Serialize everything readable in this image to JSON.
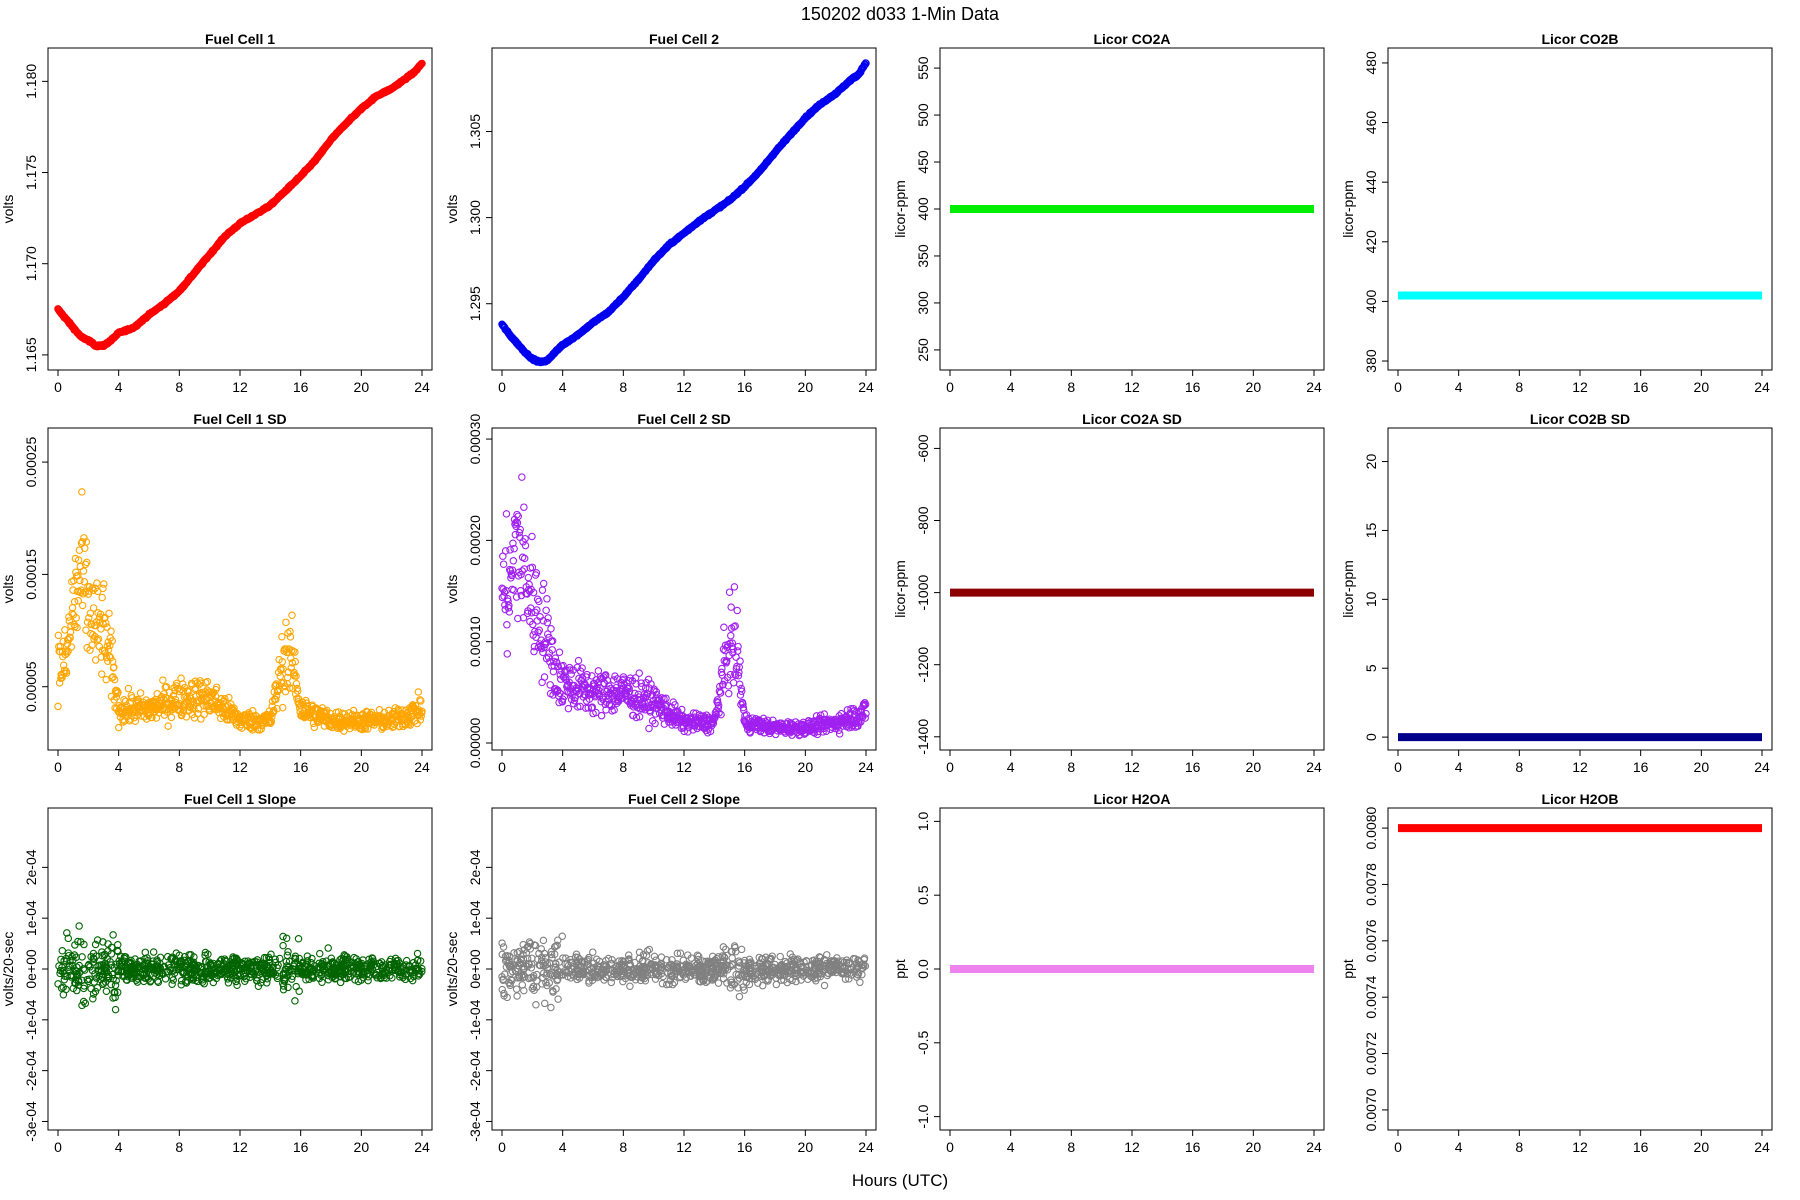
{
  "figure": {
    "title": "150202   d033   1-Min Data",
    "xlabel": "Hours (UTC)"
  },
  "chart_data": [
    {
      "type": "scatter",
      "title": "Fuel Cell 1",
      "ylabel": "volts",
      "color": "#ff0000",
      "xlim": [
        0,
        24
      ],
      "ylim": [
        1.1645,
        1.1815
      ],
      "yticks": [
        1.165,
        1.17,
        1.175,
        1.18
      ],
      "ytick_labels": [
        "1.165",
        "1.170",
        "1.175",
        "1.180"
      ],
      "x": [
        0,
        0.5,
        1,
        1.5,
        2,
        2.5,
        3,
        3.5,
        4,
        5,
        6,
        7,
        8,
        9,
        10,
        11,
        12,
        13,
        14,
        15,
        16,
        17,
        18,
        19,
        20,
        21,
        22,
        23,
        23.5,
        24
      ],
      "y": [
        1.1675,
        1.167,
        1.1665,
        1.166,
        1.1658,
        1.1655,
        1.1655,
        1.1658,
        1.1662,
        1.1665,
        1.1672,
        1.1678,
        1.1685,
        1.1695,
        1.1705,
        1.1715,
        1.1722,
        1.1727,
        1.1732,
        1.174,
        1.1748,
        1.1757,
        1.1768,
        1.1777,
        1.1785,
        1.1792,
        1.1796,
        1.1802,
        1.1805,
        1.181
      ]
    },
    {
      "type": "scatter",
      "title": "Fuel Cell 2",
      "ylabel": "volts",
      "color": "#0000ee",
      "xlim": [
        0,
        24
      ],
      "ylim": [
        1.2915,
        1.3095
      ],
      "yticks": [
        1.295,
        1.3,
        1.305
      ],
      "ytick_labels": [
        "1.295",
        "1.300",
        "1.305"
      ],
      "x": [
        0,
        0.5,
        1,
        1.5,
        2,
        2.5,
        3,
        3.5,
        4,
        5,
        6,
        7,
        8,
        9,
        10,
        11,
        12,
        13,
        14,
        15,
        16,
        17,
        18,
        19,
        20,
        21,
        22,
        23,
        23.5,
        24
      ],
      "y": [
        1.2938,
        1.2932,
        1.2927,
        1.2922,
        1.2918,
        1.2916,
        1.2917,
        1.2922,
        1.2926,
        1.2932,
        1.2939,
        1.2945,
        1.2954,
        1.2964,
        1.2975,
        1.2984,
        1.2991,
        1.2998,
        1.3004,
        1.301,
        1.3018,
        1.3027,
        1.3038,
        1.3048,
        1.3058,
        1.3066,
        1.3072,
        1.308,
        1.3083,
        1.309
      ]
    },
    {
      "type": "scatter",
      "title": "Licor CO2A",
      "ylabel": "licor-ppm",
      "color": "#00ee00",
      "xlim": [
        0,
        24
      ],
      "ylim": [
        235,
        565
      ],
      "yticks": [
        250,
        300,
        350,
        400,
        450,
        500,
        550
      ],
      "ytick_labels": [
        "250",
        "300",
        "350",
        "400",
        "450",
        "500",
        "550"
      ],
      "x": [
        0,
        24
      ],
      "y": [
        400,
        400
      ],
      "mode": "flat"
    },
    {
      "type": "scatter",
      "title": "Licor CO2B",
      "ylabel": "licor-ppm",
      "color": "#00ffff",
      "xlim": [
        0,
        24
      ],
      "ylim": [
        379,
        483
      ],
      "yticks": [
        380,
        400,
        420,
        440,
        460,
        480
      ],
      "ytick_labels": [
        "380",
        "400",
        "420",
        "440",
        "460",
        "480"
      ],
      "x": [
        0,
        24
      ],
      "y": [
        402,
        402
      ],
      "mode": "flat"
    },
    {
      "type": "scatter",
      "title": "Fuel Cell 1 SD",
      "ylabel": "volts",
      "color": "#ffa500",
      "xlim": [
        0,
        24
      ],
      "ylim": [
        -1e-06,
        0.000275
      ],
      "yticks": [
        5e-05,
        0.00015,
        0.00025
      ],
      "ytick_labels": [
        "0.00005",
        "0.00015",
        "0.00025"
      ],
      "x": [
        0.5,
        1,
        1.5,
        2,
        2.5,
        3,
        3.5,
        4,
        6,
        8,
        10,
        12,
        14,
        15,
        15.5,
        16,
        18,
        20,
        22,
        24
      ],
      "y": [
        7e-05,
        0.00012,
        0.00015,
        0.00012,
        0.0001,
        0.0001,
        7e-05,
        3e-05,
        3e-05,
        4e-05,
        4e-05,
        2e-05,
        2e-05,
        8e-05,
        7e-05,
        3e-05,
        2e-05,
        2e-05,
        2e-05,
        3e-05
      ]
    },
    {
      "type": "scatter",
      "title": "Fuel Cell 2 SD",
      "ylabel": "volts",
      "color": "#a020f0",
      "xlim": [
        0,
        24
      ],
      "ylim": [
        -1e-06,
        0.000305
      ],
      "yticks": [
        0,
        0.0001,
        0.0002,
        0.0003
      ],
      "ytick_labels": [
        "0.00000",
        "0.00010",
        "0.00020",
        "0.00030"
      ],
      "x": [
        0.5,
        1,
        1.5,
        2,
        2.5,
        3,
        3.5,
        4,
        6,
        8,
        10,
        12,
        14,
        15,
        15.5,
        16,
        18,
        20,
        22,
        24
      ],
      "y": [
        0.00015,
        0.0002,
        0.00017,
        0.00014,
        0.00012,
        0.0001,
        7e-05,
        6e-05,
        5e-05,
        5e-05,
        4e-05,
        2e-05,
        2e-05,
        0.0001,
        9e-05,
        2e-05,
        1.5e-05,
        1.5e-05,
        2e-05,
        3e-05
      ]
    },
    {
      "type": "scatter",
      "title": "Licor CO2A SD",
      "ylabel": "licor-ppm",
      "color": "#8b0000",
      "xlim": [
        0,
        24
      ],
      "ylim": [
        -1420,
        -560
      ],
      "yticks": [
        -1400,
        -1200,
        -1000,
        -800,
        -600
      ],
      "ytick_labels": [
        "-1400",
        "-1200",
        "-1000",
        "-800",
        "-600"
      ],
      "x": [
        0,
        24
      ],
      "y": [
        -1000,
        -1000
      ],
      "mode": "flat"
    },
    {
      "type": "scatter",
      "title": "Licor CO2B SD",
      "ylabel": "licor-ppm",
      "color": "#00008b",
      "xlim": [
        0,
        24
      ],
      "ylim": [
        -0.5,
        22
      ],
      "yticks": [
        0,
        5,
        10,
        15,
        20
      ],
      "ytick_labels": [
        "0",
        "5",
        "10",
        "15",
        "20"
      ],
      "x": [
        0,
        24
      ],
      "y": [
        0,
        0
      ],
      "mode": "flat"
    },
    {
      "type": "scatter",
      "title": "Fuel Cell 1 Slope",
      "ylabel": "volts/20-sec",
      "color": "#006400",
      "xlim": [
        0,
        24
      ],
      "ylim": [
        -0.000305,
        0.000305
      ],
      "yticks": [
        -0.0003,
        -0.0002,
        -0.0001,
        0,
        0.0001,
        0.0002
      ],
      "ytick_labels": [
        "-3e-04",
        "-2e-04",
        "-1e-04",
        "0e+00",
        "1e-04",
        "2e-04"
      ],
      "x": [
        0,
        24
      ],
      "y": [
        0,
        0
      ],
      "mode": "noise"
    },
    {
      "type": "scatter",
      "title": "Fuel Cell 2 Slope",
      "ylabel": "volts/20-sec",
      "color": "#808080",
      "xlim": [
        0,
        24
      ],
      "ylim": [
        -0.000305,
        0.000305
      ],
      "yticks": [
        -0.0003,
        -0.0002,
        -0.0001,
        0,
        0.0001,
        0.0002
      ],
      "ytick_labels": [
        "-3e-04",
        "-2e-04",
        "-1e-04",
        "0e+00",
        "1e-04",
        "2e-04"
      ],
      "x": [
        0,
        24
      ],
      "y": [
        0,
        0
      ],
      "mode": "noise"
    },
    {
      "type": "scatter",
      "title": "Licor H2OA",
      "ylabel": "ppt",
      "color": "#ee82ee",
      "xlim": [
        0,
        24
      ],
      "ylim": [
        -1.05,
        1.05
      ],
      "yticks": [
        -1,
        -0.5,
        0,
        0.5,
        1
      ],
      "ytick_labels": [
        "-1.0",
        "-0.5",
        "0.0",
        "0.5",
        "1.0"
      ],
      "x": [
        0,
        24
      ],
      "y": [
        0,
        0
      ],
      "mode": "flat"
    },
    {
      "type": "scatter",
      "title": "Licor H2OB",
      "ylabel": "ppt",
      "color": "#ff0000",
      "xlim": [
        0,
        24
      ],
      "ylim": [
        0.00695,
        0.00805
      ],
      "yticks": [
        0.007,
        0.0072,
        0.0074,
        0.0076,
        0.0078,
        0.008
      ],
      "ytick_labels": [
        "0.0070",
        "0.0072",
        "0.0074",
        "0.0076",
        "0.0078",
        "0.0080"
      ],
      "x": [
        0,
        24
      ],
      "y": [
        0.008,
        0.008
      ],
      "mode": "flat"
    }
  ],
  "xticks": [
    0,
    4,
    8,
    12,
    16,
    20,
    24
  ],
  "xtick_labels": [
    "0",
    "4",
    "8",
    "12",
    "16",
    "20",
    "24"
  ]
}
